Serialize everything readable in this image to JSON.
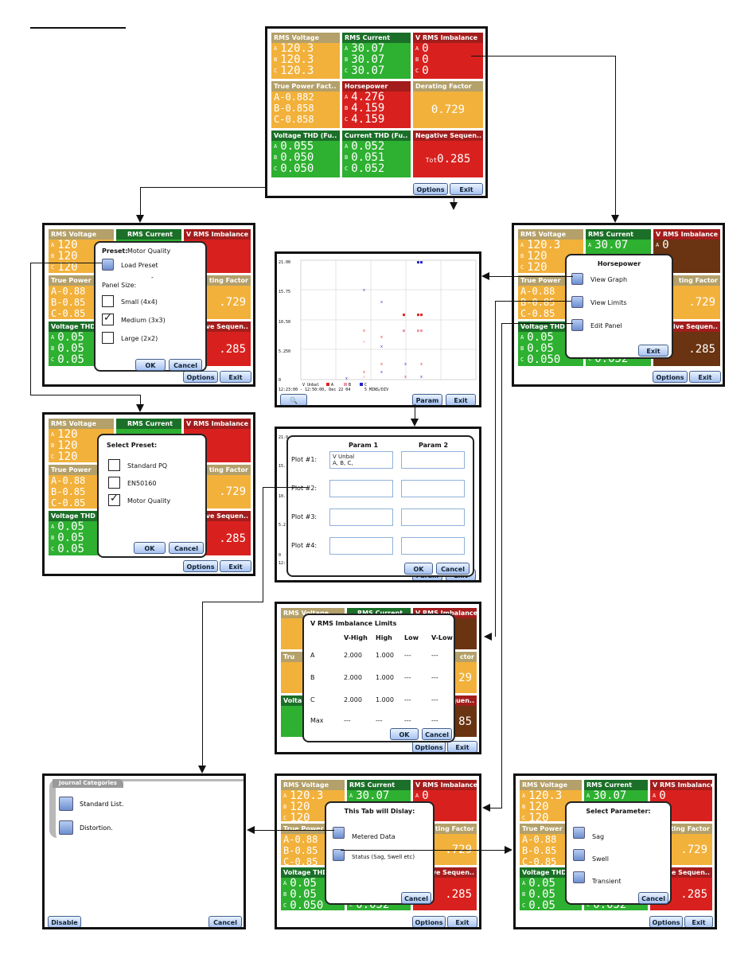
{
  "panel": {
    "rms_voltage": {
      "title": "RMS Voltage",
      "a": "120.3",
      "b": "120.3",
      "c": "120.3"
    },
    "rms_current": {
      "title": "RMS Current",
      "a": "30.07",
      "b": "30.07",
      "c": "30.07"
    },
    "v_rms_imbalance": {
      "title": "V RMS Imbalance",
      "a": "0",
      "b": "0",
      "c": "0"
    },
    "true_power_factor": {
      "title": "True Power Fact..",
      "a": "A-0.882",
      "b": "B-0.858",
      "c": "C-0.858"
    },
    "horsepower": {
      "title": "Horsepower",
      "a": "4.276",
      "b": "4.159",
      "c": "4.159"
    },
    "derating_factor": {
      "title": "Derating Factor",
      "value": "0.729"
    },
    "voltage_thd": {
      "title": "Voltage THD (Fu..",
      "a": "0.055",
      "b": "0.050",
      "c": "0.050"
    },
    "current_thd": {
      "title": "Current THD (Fu..",
      "a": "0.052",
      "b": "0.051",
      "c": "0.052"
    },
    "negative_sequence": {
      "title": "Negative Sequen..",
      "prefix": "Tot",
      "value": "0.285"
    },
    "phase_labels": {
      "a": "A",
      "b": "B",
      "c": "C"
    }
  },
  "buttons": {
    "options": "Options",
    "exit": "Exit",
    "ok": "OK",
    "cancel": "Cancel",
    "param": "Param",
    "disable": "Disable"
  },
  "truncated": {
    "rms_voltage": "RMS Voltage",
    "true_power": "True Power",
    "voltage_thd": "Voltage THD",
    "ting_factor": "ting Factor",
    "tive_sequen": "tive Sequen..",
    "v_short": "120",
    "tpf_a": "A-0.88",
    "tpf_b": "B-0.85",
    "tpf_c": "C-0.85",
    "vthd_a": "0.05",
    "vthd_b": "0.05",
    "vthd_c": "0.05",
    "der_short": ".729",
    "neg_short": ".285",
    "cthd_c_short": "0.052",
    "vthd_c_full": "0.050"
  },
  "preset_dialog": {
    "label": "Preset:",
    "preset_value": "Motor Quality",
    "load_preset": "Load Preset",
    "panel_size_label": "Panel Size:",
    "small": "Small  (4x4)",
    "medium": "Medium (3x3)",
    "large": "Large  (2x2)",
    "dash": "-"
  },
  "select_preset_dialog": {
    "title": "Select Preset:",
    "standard_pq": "Standard PQ",
    "en50160": "EN50160",
    "motor_quality": "Motor Quality"
  },
  "horsepower_menu": {
    "title": "Horsepower",
    "view_graph": "View Graph",
    "view_limits": "View Limits",
    "edit_panel": "Edit Panel"
  },
  "graph": {
    "y_ticks": [
      "21.00",
      "15.75",
      "10.50",
      "5.250",
      "0"
    ],
    "legend": [
      "V Unbal",
      "A",
      "B",
      "C"
    ],
    "timestamp": "12:23:00 - 12:50:00, Dec 22 04",
    "scale": "5 MINS/DIV",
    "zoom_icon": "magnifier-icon"
  },
  "param_dialog": {
    "header1": "Param 1",
    "header2": "Param 2",
    "plot1": "Plot #1:",
    "plot2": "Plot #2:",
    "plot3": "Plot #3:",
    "plot4": "Plot #4:",
    "plot1_value_line1": "V Unbal",
    "plot1_value_line2": "A, B, C,",
    "bg_tick_top": "21.0",
    "bg_tick_mid": "15.",
    "bg_tick_low": "10.",
    "bg_tick_5": "5.2",
    "bg_tick_0": "0",
    "bg_ts": "12:"
  },
  "limits_dialog": {
    "title": "V RMS Imbalance Limits",
    "headers": [
      "V-High",
      "High",
      "Low",
      "V-Low"
    ],
    "rows": [
      {
        "label": "A",
        "values": [
          "2.000",
          "1.000",
          "---",
          "---"
        ]
      },
      {
        "label": "B",
        "values": [
          "2.000",
          "1.000",
          "---",
          "---"
        ]
      },
      {
        "label": "C",
        "values": [
          "2.000",
          "1.000",
          "---",
          "---"
        ]
      },
      {
        "label": "Max",
        "values": [
          "---",
          "---",
          "---",
          "---"
        ]
      }
    ],
    "bg_tuc": "Tru",
    "bg_volta": "Volta",
    "bg_ctor": "ctor",
    "bg_quen": "equen..",
    "bg_29": "29",
    "bg_85": "85"
  },
  "tab_dialog": {
    "title": "This Tab will Dislay:",
    "metered": "Metered Data",
    "status": "Status (Sag, Swell etc)"
  },
  "param_select_dialog": {
    "title": "Select Parameter:",
    "sag": "Sag",
    "swell": "Swell",
    "transient": "Transient"
  },
  "journal": {
    "title": "Journal Categories",
    "standard": "Standard List.",
    "distortion": "Distortion."
  }
}
